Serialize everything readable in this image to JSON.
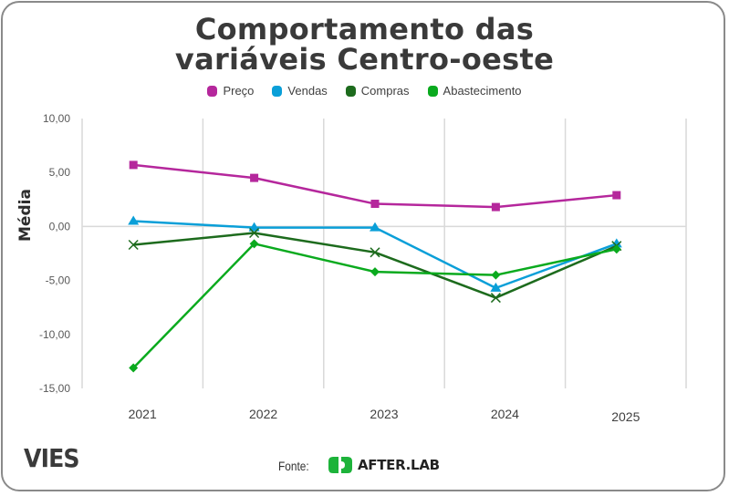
{
  "chart_data": {
    "type": "line",
    "title": "Comportamento das variáveis Centro-oeste",
    "title_lines": [
      "Comportamento das",
      "variáveis Centro-oeste"
    ],
    "xlabel": "",
    "ylabel": "Média",
    "categories": [
      "2021",
      "2022",
      "2023",
      "2024",
      "2025"
    ],
    "ylim": [
      -15,
      10
    ],
    "yticks": [
      10,
      5,
      0,
      -5,
      -10,
      -15
    ],
    "ytick_labels": [
      "10,00",
      "5,00",
      "0,00",
      "-5,00",
      "-10,00",
      "-15,00"
    ],
    "grid": true,
    "legend_position": "top",
    "series": [
      {
        "name": "Preço",
        "color": "#B5279C",
        "marker": "square",
        "values": [
          5.7,
          4.5,
          2.1,
          1.8,
          2.9
        ]
      },
      {
        "name": "Vendas",
        "color": "#0A9FD8",
        "marker": "triangle",
        "values": [
          0.5,
          -0.1,
          -0.1,
          -5.7,
          -1.6
        ]
      },
      {
        "name": "Compras",
        "color": "#1D6B1D",
        "marker": "x",
        "values": [
          -1.7,
          -0.6,
          -2.4,
          -6.6,
          -1.8
        ]
      },
      {
        "name": "Abastecimento",
        "color": "#0AAA1E",
        "marker": "diamond",
        "values": [
          -13.1,
          -1.6,
          -4.2,
          -4.5,
          -2.1
        ]
      }
    ]
  },
  "footer": {
    "brand": "VIES",
    "source_label": "Fonte:",
    "source_name": "AFTER.LAB",
    "source_logo_color": "#1DB33A"
  }
}
